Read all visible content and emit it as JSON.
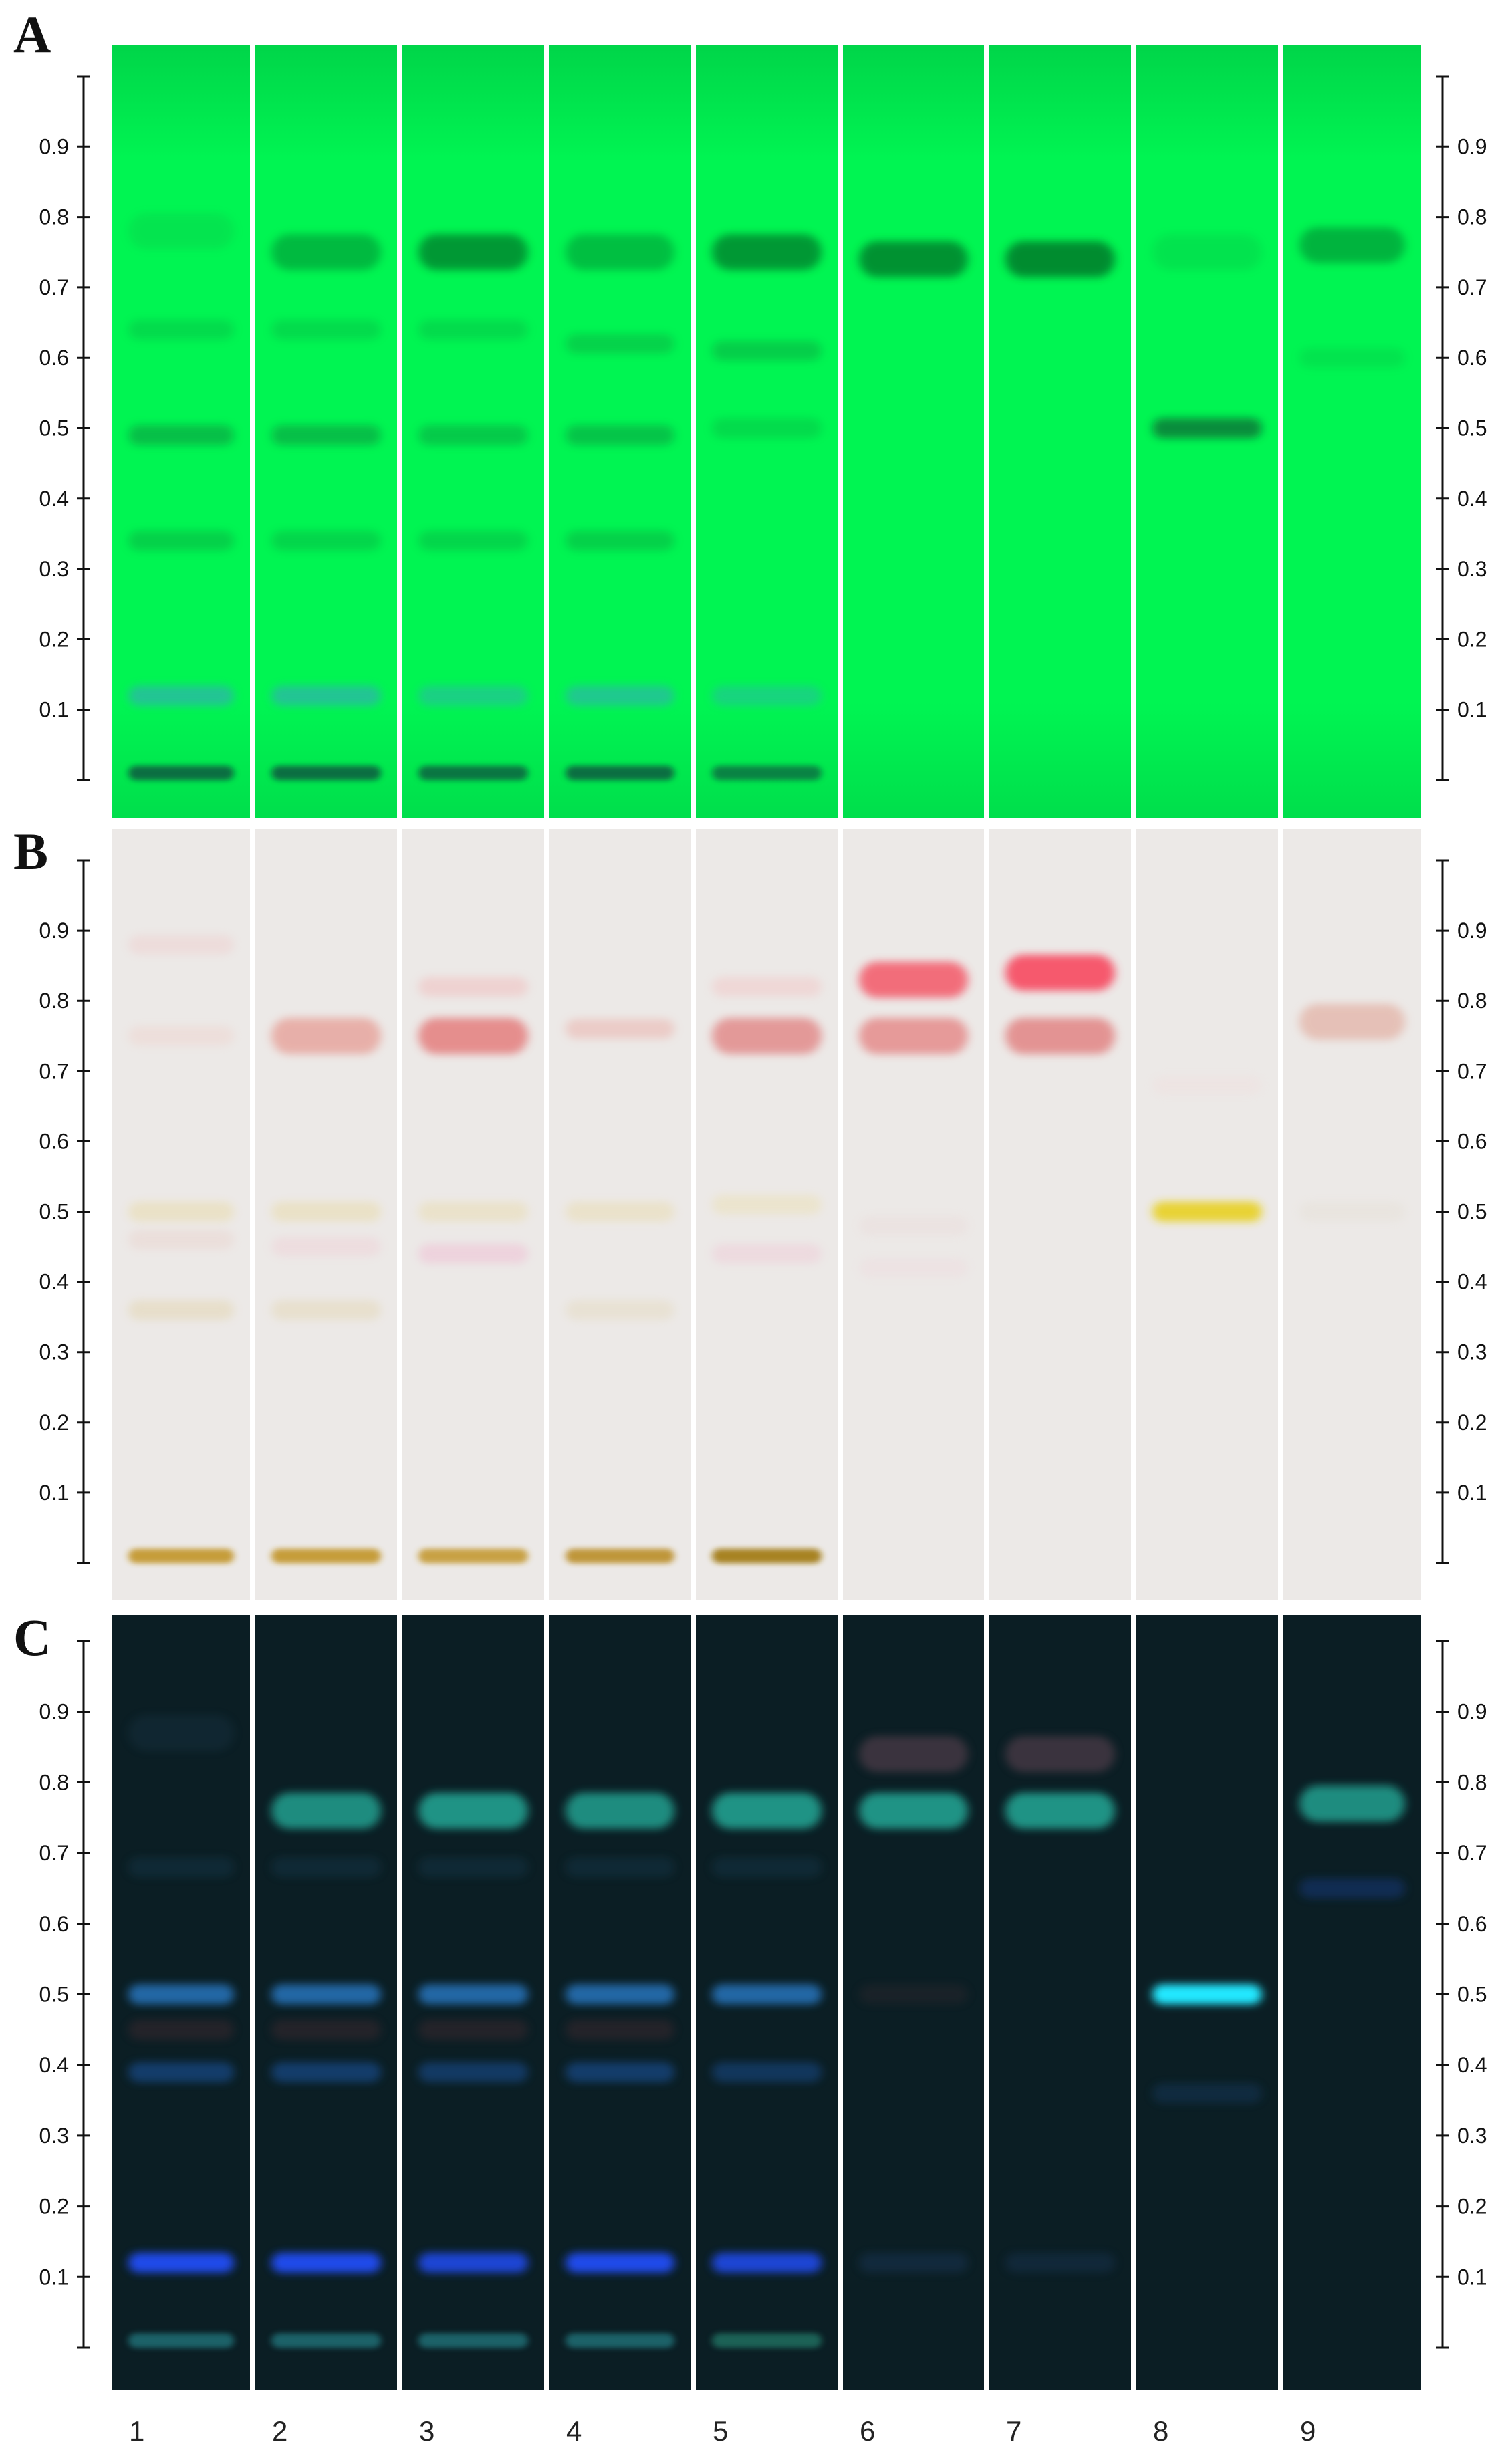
{
  "panels": [
    {
      "label": "A",
      "bg": "#00f552",
      "tick_color": "#111111",
      "lanes": [
        {
          "num": 1,
          "bands": [
            [
              0.01,
              "#0a5a40",
              0.85
            ],
            [
              0.12,
              "#3aa4c0",
              0.6
            ],
            [
              0.34,
              "#10903a",
              0.35
            ],
            [
              0.49,
              "#0c8a3c",
              0.5
            ],
            [
              0.64,
              "#10a040",
              0.3
            ],
            [
              0.78,
              "#13a544",
              0.2
            ]
          ]
        },
        {
          "num": 2,
          "bands": [
            [
              0.01,
              "#0a5a40",
              0.85
            ],
            [
              0.12,
              "#3aa4c0",
              0.6
            ],
            [
              0.34,
              "#10903a",
              0.3
            ],
            [
              0.49,
              "#0c8a3c",
              0.5
            ],
            [
              0.64,
              "#10a040",
              0.3
            ],
            [
              0.75,
              "#058a32",
              0.55
            ]
          ]
        },
        {
          "num": 3,
          "bands": [
            [
              0.01,
              "#0a5a40",
              0.8
            ],
            [
              0.12,
              "#3aa4c0",
              0.45
            ],
            [
              0.34,
              "#10903a",
              0.3
            ],
            [
              0.49,
              "#0c8a3c",
              0.4
            ],
            [
              0.64,
              "#10a040",
              0.3
            ],
            [
              0.75,
              "#037a2c",
              0.75
            ]
          ]
        },
        {
          "num": 4,
          "bands": [
            [
              0.01,
              "#0a5a40",
              0.85
            ],
            [
              0.12,
              "#3aa4c0",
              0.55
            ],
            [
              0.34,
              "#10903a",
              0.35
            ],
            [
              0.49,
              "#0c8a3c",
              0.45
            ],
            [
              0.62,
              "#10a040",
              0.4
            ],
            [
              0.75,
              "#058a32",
              0.5
            ]
          ]
        },
        {
          "num": 5,
          "bands": [
            [
              0.01,
              "#0a5a40",
              0.7
            ],
            [
              0.12,
              "#3aa4c0",
              0.4
            ],
            [
              0.5,
              "#10903a",
              0.25
            ],
            [
              0.61,
              "#10a040",
              0.45
            ],
            [
              0.75,
              "#037a2c",
              0.75
            ]
          ]
        },
        {
          "num": 6,
          "bands": [
            [
              0.74,
              "#037a2c",
              0.8
            ]
          ]
        },
        {
          "num": 7,
          "bands": [
            [
              0.74,
              "#037a2c",
              0.85
            ]
          ]
        },
        {
          "num": 8,
          "bands": [
            [
              0.5,
              "#0a6a34",
              0.75
            ],
            [
              0.75,
              "#10a040",
              0.2
            ]
          ]
        },
        {
          "num": 9,
          "bands": [
            [
              0.76,
              "#058a32",
              0.6
            ],
            [
              0.6,
              "#10a040",
              0.2
            ]
          ]
        }
      ]
    },
    {
      "label": "B",
      "bg": "#ece9e7",
      "tick_color": "#111111",
      "lanes": [
        {
          "num": 1,
          "bands": [
            [
              0.01,
              "#c0901c",
              0.85
            ],
            [
              0.36,
              "#e0cfa0",
              0.4
            ],
            [
              0.46,
              "#e8c8c0",
              0.3
            ],
            [
              0.5,
              "#e8d8a0",
              0.45
            ],
            [
              0.75,
              "#f0c8c0",
              0.3
            ],
            [
              0.88,
              "#f0c0c0",
              0.3
            ]
          ]
        },
        {
          "num": 2,
          "bands": [
            [
              0.01,
              "#c0901c",
              0.85
            ],
            [
              0.36,
              "#e0cfa0",
              0.35
            ],
            [
              0.45,
              "#f0c8d0",
              0.35
            ],
            [
              0.5,
              "#e8d8a0",
              0.45
            ],
            [
              0.75,
              "#e58a80",
              0.6
            ]
          ]
        },
        {
          "num": 3,
          "bands": [
            [
              0.01,
              "#c0901c",
              0.8
            ],
            [
              0.44,
              "#f0b8d0",
              0.45
            ],
            [
              0.5,
              "#e8d8a0",
              0.4
            ],
            [
              0.75,
              "#e37070",
              0.75
            ],
            [
              0.82,
              "#f2b0b0",
              0.4
            ]
          ]
        },
        {
          "num": 4,
          "bands": [
            [
              0.01,
              "#b8881a",
              0.85
            ],
            [
              0.36,
              "#e0d0a8",
              0.3
            ],
            [
              0.5,
              "#e8d8a0",
              0.4
            ],
            [
              0.76,
              "#eaa098",
              0.4
            ]
          ]
        },
        {
          "num": 5,
          "bands": [
            [
              0.01,
              "#a07810",
              0.9
            ],
            [
              0.44,
              "#f0c0d0",
              0.35
            ],
            [
              0.51,
              "#eadca0",
              0.35
            ],
            [
              0.75,
              "#e07878",
              0.7
            ],
            [
              0.82,
              "#f4b8b8",
              0.35
            ]
          ]
        },
        {
          "num": 6,
          "bands": [
            [
              0.75,
              "#e37070",
              0.65
            ],
            [
              0.83,
              "#f45060",
              0.8
            ],
            [
              0.48,
              "#e8d0d0",
              0.25
            ],
            [
              0.42,
              "#f0d0d8",
              0.25
            ]
          ]
        },
        {
          "num": 7,
          "bands": [
            [
              0.75,
              "#e07070",
              0.7
            ],
            [
              0.84,
              "#f84058",
              0.85
            ]
          ]
        },
        {
          "num": 8,
          "bands": [
            [
              0.5,
              "#e8d020",
              0.9
            ],
            [
              0.68,
              "#f2d8d8",
              0.25
            ]
          ]
        },
        {
          "num": 9,
          "bands": [
            [
              0.77,
              "#e0a090",
              0.55
            ],
            [
              0.5,
              "#e0d8c8",
              0.25
            ]
          ]
        }
      ]
    },
    {
      "label": "C",
      "bg": "#0b1e24",
      "tick_color": "#111111",
      "lanes": [
        {
          "num": 1,
          "bands": [
            [
              0.01,
              "#2a9aa0",
              0.55
            ],
            [
              0.12,
              "#2050ff",
              0.9
            ],
            [
              0.39,
              "#1a5cb0",
              0.5
            ],
            [
              0.45,
              "#4a2a30",
              0.4
            ],
            [
              0.5,
              "#2a80d0",
              0.75
            ],
            [
              0.68,
              "#143a50",
              0.4
            ],
            [
              0.87,
              "#1a3a50",
              0.3
            ]
          ]
        },
        {
          "num": 2,
          "bands": [
            [
              0.01,
              "#2a9aa0",
              0.55
            ],
            [
              0.12,
              "#2050ff",
              0.9
            ],
            [
              0.39,
              "#1a5cb0",
              0.5
            ],
            [
              0.45,
              "#4a2a30",
              0.4
            ],
            [
              0.5,
              "#2a80d0",
              0.75
            ],
            [
              0.68,
              "#143a50",
              0.4
            ],
            [
              0.76,
              "#20a090",
              0.85
            ]
          ]
        },
        {
          "num": 3,
          "bands": [
            [
              0.01,
              "#2a9aa0",
              0.55
            ],
            [
              0.12,
              "#2050ff",
              0.8
            ],
            [
              0.39,
              "#1a5cb0",
              0.45
            ],
            [
              0.45,
              "#4a2a30",
              0.4
            ],
            [
              0.5,
              "#2a80d0",
              0.75
            ],
            [
              0.68,
              "#143a50",
              0.4
            ],
            [
              0.76,
              "#20a090",
              0.9
            ]
          ]
        },
        {
          "num": 4,
          "bands": [
            [
              0.01,
              "#2a9aa0",
              0.55
            ],
            [
              0.12,
              "#2050ff",
              0.9
            ],
            [
              0.39,
              "#1a5cb0",
              0.5
            ],
            [
              0.45,
              "#4a2a30",
              0.4
            ],
            [
              0.5,
              "#2a80d0",
              0.75
            ],
            [
              0.68,
              "#143a50",
              0.4
            ],
            [
              0.76,
              "#20a090",
              0.85
            ]
          ]
        },
        {
          "num": 5,
          "bands": [
            [
              0.01,
              "#2a9a80",
              0.55
            ],
            [
              0.12,
              "#2050ff",
              0.8
            ],
            [
              0.39,
              "#1a5cb0",
              0.4
            ],
            [
              0.5,
              "#2a80d0",
              0.75
            ],
            [
              0.68,
              "#143a50",
              0.4
            ],
            [
              0.76,
              "#20a090",
              0.9
            ]
          ]
        },
        {
          "num": 6,
          "bands": [
            [
              0.12,
              "#1a3a60",
              0.4
            ],
            [
              0.76,
              "#20a090",
              0.9
            ],
            [
              0.84,
              "#6a4a58",
              0.5
            ],
            [
              0.5,
              "#3a2a30",
              0.3
            ]
          ]
        },
        {
          "num": 7,
          "bands": [
            [
              0.12,
              "#1a3a60",
              0.35
            ],
            [
              0.76,
              "#20a090",
              0.9
            ],
            [
              0.84,
              "#6a4a58",
              0.5
            ]
          ]
        },
        {
          "num": 8,
          "bands": [
            [
              0.5,
              "#20e8ff",
              1.0
            ],
            [
              0.36,
              "#143a60",
              0.45
            ]
          ]
        },
        {
          "num": 9,
          "bands": [
            [
              0.77,
              "#20a090",
              0.85
            ],
            [
              0.65,
              "#143a80",
              0.5
            ]
          ]
        }
      ]
    }
  ],
  "ticks": [
    "0.1",
    "0.2",
    "0.3",
    "0.4",
    "0.5",
    "0.6",
    "0.7",
    "0.8",
    "0.9"
  ],
  "tick_values": [
    0.1,
    0.2,
    0.3,
    0.4,
    0.5,
    0.6,
    0.7,
    0.8,
    0.9
  ],
  "lane_numbers": [
    "1",
    "2",
    "3",
    "4",
    "5",
    "6",
    "7",
    "8",
    "9"
  ]
}
